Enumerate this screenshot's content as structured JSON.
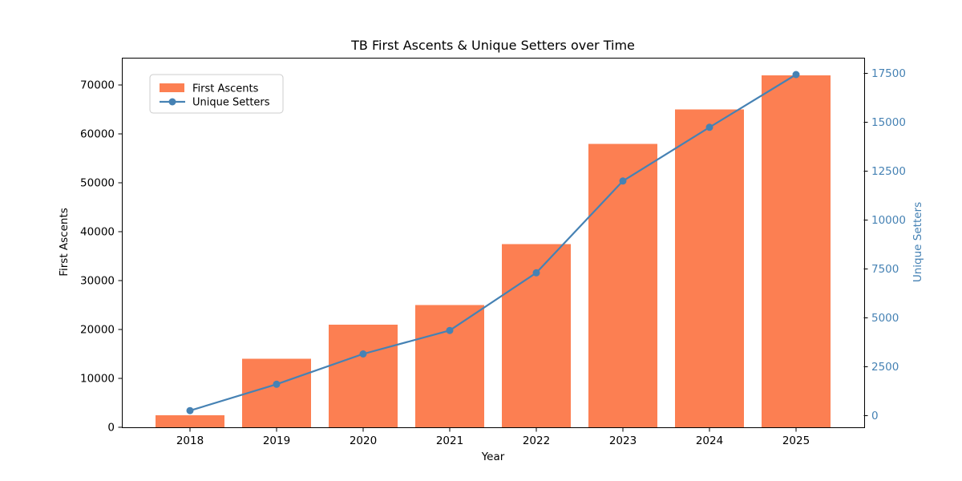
{
  "chart_data": {
    "type": "combo",
    "title": "TB First Ascents & Unique Setters over Time",
    "xlabel": "Year",
    "categories": [
      "2018",
      "2019",
      "2020",
      "2021",
      "2022",
      "2023",
      "2024",
      "2025"
    ],
    "series": [
      {
        "name": "First Ascents",
        "type": "bar",
        "yaxis": "left",
        "color": "#FC7F52",
        "values": [
          2500,
          14000,
          21000,
          25000,
          37500,
          58000,
          65000,
          72000
        ]
      },
      {
        "name": "Unique Setters",
        "type": "line",
        "yaxis": "right",
        "color": "#4682B4",
        "marker": "circle",
        "values": [
          250,
          1600,
          3150,
          4350,
          7300,
          12000,
          14750,
          17450
        ]
      }
    ],
    "left_axis": {
      "label": "First Ascents",
      "ticks": [
        0,
        10000,
        20000,
        30000,
        40000,
        50000,
        60000,
        70000
      ],
      "range": [
        0,
        75600
      ],
      "text_color": "#000000"
    },
    "right_axis": {
      "label": "Unique Setters",
      "ticks": [
        0,
        2500,
        5000,
        7500,
        10000,
        12500,
        15000,
        17500
      ],
      "range": [
        -605,
        18310
      ],
      "text_color": "#4682B4"
    },
    "legend": {
      "position": "upper-left",
      "entries": [
        "First Ascents",
        "Unique Setters"
      ]
    },
    "grid": false,
    "background": "#FFFFFF",
    "spine_color": "#000000"
  }
}
